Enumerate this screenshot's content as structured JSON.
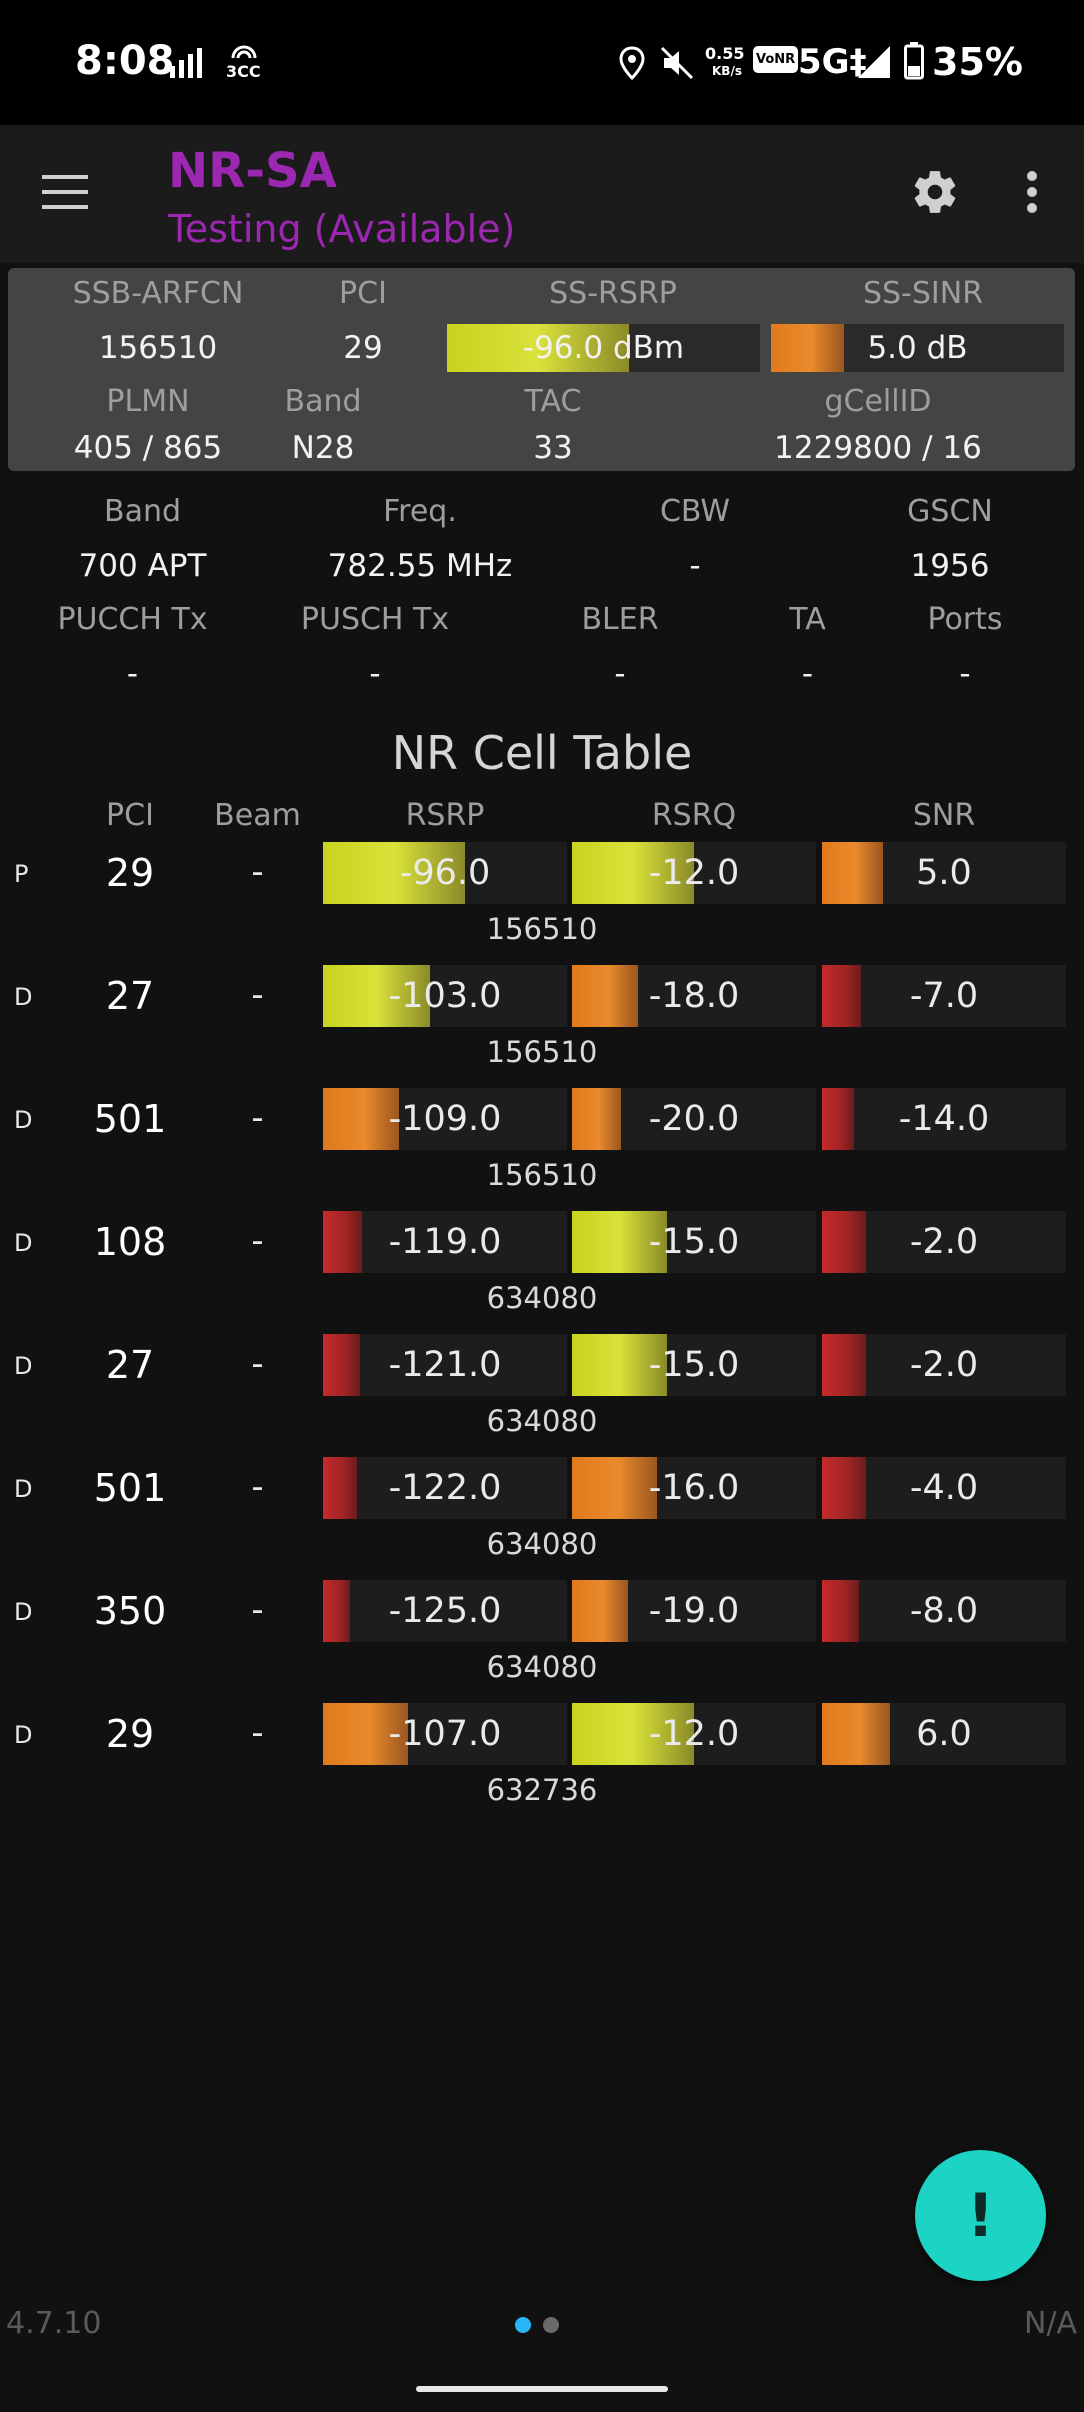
{
  "status_bar": {
    "time": "8:08",
    "signal_label": "3CC",
    "speed_value": "0.55",
    "speed_unit": "KB/s",
    "vonr_badge": "VoNR",
    "network": "5G‡",
    "battery": "35%"
  },
  "app_bar": {
    "title": "NR-SA",
    "subtitle": "Testing (Available)"
  },
  "summary": {
    "headers": [
      "SSB-ARFCN",
      "PCI",
      "SS-RSRP",
      "SS-SINR"
    ],
    "ssb_arfcn": "156510",
    "pci": "29",
    "ss_rsrp": "-96.0 dBm",
    "ss_rsrp_level": 0.58,
    "ss_sinr": "5.0 dB",
    "ss_sinr_level": 0.25,
    "headers2": [
      "PLMN",
      "Band",
      "TAC",
      "gCellID"
    ],
    "plmn": "405 / 865",
    "band": "N28",
    "tac": "33",
    "gcellid": "1229800 / 16"
  },
  "details": {
    "headers1": [
      "Band",
      "Freq.",
      "CBW",
      "GSCN"
    ],
    "values1": [
      "700 APT",
      "782.55 MHz",
      "-",
      "1956"
    ],
    "headers2": [
      "PUCCH Tx",
      "PUSCH Tx",
      "BLER",
      "TA",
      "Ports"
    ],
    "values2": [
      "-",
      "-",
      "-",
      "-",
      "-"
    ]
  },
  "cell_table": {
    "title": "NR Cell Table",
    "columns": [
      "PCI",
      "Beam",
      "RSRP",
      "RSRQ",
      "SNR"
    ],
    "rows": [
      {
        "tag": "P",
        "pci": "29",
        "beam": "-",
        "rsrp": "-96.0",
        "rsrp_level": 0.58,
        "rsrp_color": "yellow",
        "rsrq": "-12.0",
        "rsrq_level": 0.5,
        "rsrq_color": "yellow",
        "snr": "5.0",
        "snr_level": 0.25,
        "snr_color": "orange",
        "arfcn": "156510"
      },
      {
        "tag": "D",
        "pci": "27",
        "beam": "-",
        "rsrp": "-103.0",
        "rsrp_level": 0.44,
        "rsrp_color": "yellow",
        "rsrq": "-18.0",
        "rsrq_level": 0.27,
        "rsrq_color": "orange",
        "snr": "-7.0",
        "snr_level": 0.16,
        "snr_color": "red",
        "arfcn": "156510"
      },
      {
        "tag": "D",
        "pci": "501",
        "beam": "-",
        "rsrp": "-109.0",
        "rsrp_level": 0.31,
        "rsrp_color": "orange",
        "rsrq": "-20.0",
        "rsrq_level": 0.2,
        "rsrq_color": "orange",
        "snr": "-14.0",
        "snr_level": 0.13,
        "snr_color": "red",
        "arfcn": "156510"
      },
      {
        "tag": "D",
        "pci": "108",
        "beam": "-",
        "rsrp": "-119.0",
        "rsrp_level": 0.16,
        "rsrp_color": "red",
        "rsrq": "-15.0",
        "rsrq_level": 0.39,
        "rsrq_color": "yellow",
        "snr": "-2.0",
        "snr_level": 0.18,
        "snr_color": "red",
        "arfcn": "634080"
      },
      {
        "tag": "D",
        "pci": "27",
        "beam": "-",
        "rsrp": "-121.0",
        "rsrp_level": 0.15,
        "rsrp_color": "red",
        "rsrq": "-15.0",
        "rsrq_level": 0.39,
        "rsrq_color": "yellow",
        "snr": "-2.0",
        "snr_level": 0.18,
        "snr_color": "red",
        "arfcn": "634080"
      },
      {
        "tag": "D",
        "pci": "501",
        "beam": "-",
        "rsrp": "-122.0",
        "rsrp_level": 0.14,
        "rsrp_color": "red",
        "rsrq": "-16.0",
        "rsrq_level": 0.35,
        "rsrq_color": "orange",
        "snr": "-4.0",
        "snr_level": 0.18,
        "snr_color": "red",
        "arfcn": "634080"
      },
      {
        "tag": "D",
        "pci": "350",
        "beam": "-",
        "rsrp": "-125.0",
        "rsrp_level": 0.11,
        "rsrp_color": "red",
        "rsrq": "-19.0",
        "rsrq_level": 0.23,
        "rsrq_color": "orange",
        "snr": "-8.0",
        "snr_level": 0.15,
        "snr_color": "red",
        "arfcn": "634080"
      },
      {
        "tag": "D",
        "pci": "29",
        "beam": "-",
        "rsrp": "-107.0",
        "rsrp_level": 0.35,
        "rsrp_color": "orange",
        "rsrq": "-12.0",
        "rsrq_level": 0.5,
        "rsrq_color": "yellow",
        "snr": "6.0",
        "snr_level": 0.28,
        "snr_color": "orange",
        "arfcn": "632736"
      }
    ]
  },
  "fab": {
    "label": "!"
  },
  "footer": {
    "version": "4.7.10",
    "right": "N/A"
  },
  "colors": {
    "accent": "#9c27b0",
    "fab": "#1dd3c4",
    "page_dot_active": "#29b6f6"
  }
}
